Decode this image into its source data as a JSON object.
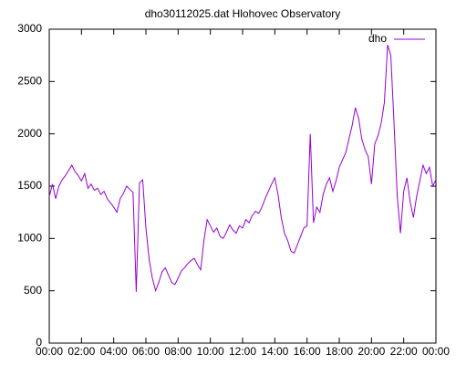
{
  "chart_data": {
    "type": "line",
    "title": "dho30112025.dat Hlohovec Observatory",
    "x": [
      0,
      0.2,
      0.4,
      0.6,
      0.8,
      1,
      1.2,
      1.4,
      1.6,
      1.8,
      2,
      2.2,
      2.4,
      2.6,
      2.8,
      3,
      3.2,
      3.4,
      3.6,
      3.8,
      4,
      4.2,
      4.4,
      4.6,
      4.8,
      5,
      5.2,
      5.4,
      5.6,
      5.8,
      6,
      6.2,
      6.4,
      6.6,
      6.8,
      7,
      7.2,
      7.4,
      7.6,
      7.8,
      8,
      8.2,
      8.4,
      8.6,
      8.8,
      9,
      9.2,
      9.4,
      9.6,
      9.8,
      10,
      10.2,
      10.4,
      10.6,
      10.8,
      11,
      11.2,
      11.4,
      11.6,
      11.8,
      12,
      12.2,
      12.4,
      12.6,
      12.8,
      13,
      13.2,
      13.4,
      13.6,
      13.8,
      14,
      14.2,
      14.4,
      14.6,
      14.8,
      15,
      15.2,
      15.4,
      15.6,
      15.8,
      16,
      16.2,
      16.4,
      16.6,
      16.8,
      17,
      17.2,
      17.4,
      17.6,
      17.8,
      18,
      18.2,
      18.4,
      18.6,
      18.8,
      19,
      19.2,
      19.4,
      19.6,
      19.8,
      20,
      20.2,
      20.4,
      20.6,
      20.8,
      21,
      21.2,
      21.4,
      21.6,
      21.8,
      22,
      22.2,
      22.4,
      22.6,
      22.8,
      23,
      23.2,
      23.4,
      23.6,
      23.8,
      24
    ],
    "series": [
      {
        "name": "dho",
        "color": "#9400d3",
        "values": [
          1400,
          1520,
          1380,
          1500,
          1560,
          1600,
          1650,
          1700,
          1640,
          1600,
          1550,
          1620,
          1480,
          1520,
          1460,
          1480,
          1420,
          1450,
          1380,
          1340,
          1300,
          1250,
          1380,
          1430,
          1500,
          1470,
          1440,
          490,
          1530,
          1560,
          1100,
          800,
          620,
          500,
          580,
          680,
          720,
          650,
          580,
          560,
          620,
          690,
          720,
          760,
          790,
          810,
          750,
          700,
          980,
          1180,
          1120,
          1060,
          1100,
          1020,
          1000,
          1060,
          1130,
          1080,
          1050,
          1120,
          1100,
          1180,
          1150,
          1220,
          1260,
          1240,
          1300,
          1380,
          1450,
          1520,
          1580,
          1420,
          1200,
          1050,
          980,
          880,
          860,
          940,
          1020,
          1100,
          1120,
          2000,
          1150,
          1300,
          1250,
          1420,
          1520,
          1580,
          1450,
          1550,
          1680,
          1750,
          1820,
          1950,
          2080,
          2250,
          2150,
          1950,
          1850,
          1780,
          1520,
          1900,
          1980,
          2100,
          2300,
          2850,
          2750,
          2100,
          1400,
          1050,
          1450,
          1580,
          1350,
          1200,
          1400,
          1550,
          1700,
          1620,
          1680,
          1500,
          1560
        ]
      }
    ],
    "xlim": [
      0,
      24
    ],
    "xticks": [
      {
        "value": 0,
        "label": "00:00"
      },
      {
        "value": 2,
        "label": "02:00"
      },
      {
        "value": 4,
        "label": "04:00"
      },
      {
        "value": 6,
        "label": "06:00"
      },
      {
        "value": 8,
        "label": "08:00"
      },
      {
        "value": 10,
        "label": "10:00"
      },
      {
        "value": 12,
        "label": "12:00"
      },
      {
        "value": 14,
        "label": "14:00"
      },
      {
        "value": 16,
        "label": "16:00"
      },
      {
        "value": 18,
        "label": "18:00"
      },
      {
        "value": 20,
        "label": "20:00"
      },
      {
        "value": 22,
        "label": "22:00"
      },
      {
        "value": 24,
        "label": "00:00"
      }
    ],
    "ylim": [
      0,
      3000
    ],
    "yticks": [
      0,
      500,
      1000,
      1500,
      2000,
      2500,
      3000
    ],
    "legend": "top-right"
  }
}
